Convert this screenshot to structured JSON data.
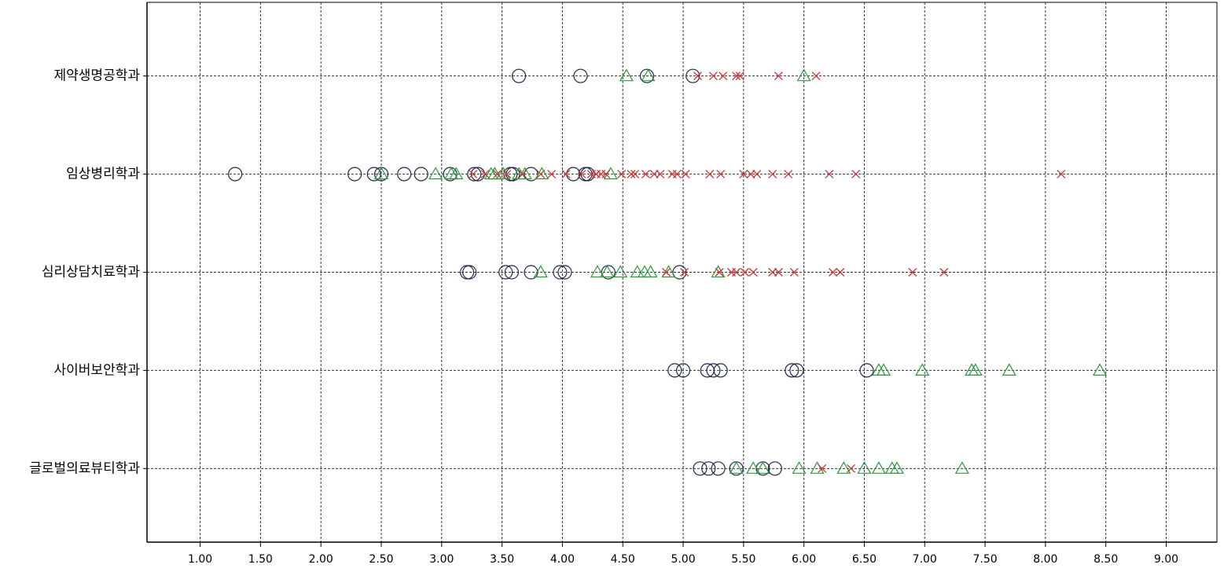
{
  "chart_data": {
    "type": "scatter",
    "categories": [
      "제약생명공학과",
      "임상병리학과",
      "심리상담치료학과",
      "사이버보안학과",
      "글로벌의료뷰티학과"
    ],
    "xlim": [
      0.56,
      9.42
    ],
    "xticks": [
      {
        "value": 1,
        "label": "1.00"
      },
      {
        "value": 1.5,
        "label": "1.50"
      },
      {
        "value": 2,
        "label": "2.00"
      },
      {
        "value": 2.5,
        "label": "2.50"
      },
      {
        "value": 3,
        "label": "3.00"
      },
      {
        "value": 3.5,
        "label": "3.50"
      },
      {
        "value": 4,
        "label": "4.00"
      },
      {
        "value": 4.5,
        "label": "4.50"
      },
      {
        "value": 5,
        "label": "5.00"
      },
      {
        "value": 5.5,
        "label": "5.50"
      },
      {
        "value": 6,
        "label": "6.00"
      },
      {
        "value": 6.5,
        "label": "6.50"
      },
      {
        "value": 7,
        "label": "7.00"
      },
      {
        "value": 7.5,
        "label": "7.50"
      },
      {
        "value": 8,
        "label": "8.00"
      },
      {
        "value": 8.5,
        "label": "8.50"
      },
      {
        "value": 9,
        "label": "9.00"
      }
    ],
    "grid": true,
    "series": [
      {
        "marker": "circle",
        "color": "#1f2a4a",
        "x": [
          [
            3.64,
            4.15,
            4.7,
            5.08
          ],
          [
            1.29,
            2.28,
            2.44,
            2.5,
            2.69,
            2.83,
            3.07,
            3.27,
            3.3,
            3.57,
            3.59,
            3.74,
            4.09,
            4.19,
            4.21
          ],
          [
            3.21,
            3.23,
            3.53,
            3.58,
            3.74,
            3.98,
            4.02,
            4.38,
            4.97
          ],
          [
            4.93,
            5.0,
            5.2,
            5.25,
            5.31,
            5.9,
            5.94,
            6.52
          ],
          [
            5.14,
            5.21,
            5.29,
            5.44,
            5.66,
            5.76
          ]
        ]
      },
      {
        "marker": "triangle",
        "color": "#2a9a3a",
        "x": [
          [
            4.53,
            4.71,
            6.0
          ],
          [
            2.5,
            2.95,
            3.08,
            3.12,
            3.41,
            3.44,
            3.51,
            3.64,
            3.69,
            3.83,
            4.4
          ],
          [
            3.82,
            4.29,
            4.37,
            4.48,
            4.62,
            4.68,
            4.73,
            4.88,
            5.29
          ],
          [
            6.62,
            6.66,
            6.98,
            7.39,
            7.42,
            7.7,
            8.45
          ],
          [
            5.44,
            5.58,
            5.66,
            5.96,
            6.11,
            6.33,
            6.5,
            6.62,
            6.73,
            6.77,
            7.31
          ]
        ]
      },
      {
        "marker": "x",
        "color": "#cc3333",
        "x": [
          [
            5.12,
            5.25,
            5.33,
            5.44,
            5.47,
            5.79,
            6.1
          ],
          [
            3.26,
            3.36,
            3.46,
            3.54,
            3.67,
            3.82,
            3.91,
            4.03,
            4.16,
            4.24,
            4.28,
            4.32,
            4.36,
            4.49,
            4.57,
            4.6,
            4.69,
            4.76,
            4.81,
            4.91,
            4.95,
            5.02,
            5.22,
            5.31,
            5.5,
            5.56,
            5.61,
            5.74,
            5.87,
            6.21,
            6.43,
            8.13
          ],
          [
            4.86,
            5.01,
            5.3,
            5.4,
            5.44,
            5.51,
            5.58,
            5.74,
            5.79,
            5.92,
            6.24,
            6.3,
            6.9,
            7.16
          ],
          [],
          [
            6.15,
            6.39
          ]
        ]
      }
    ]
  }
}
